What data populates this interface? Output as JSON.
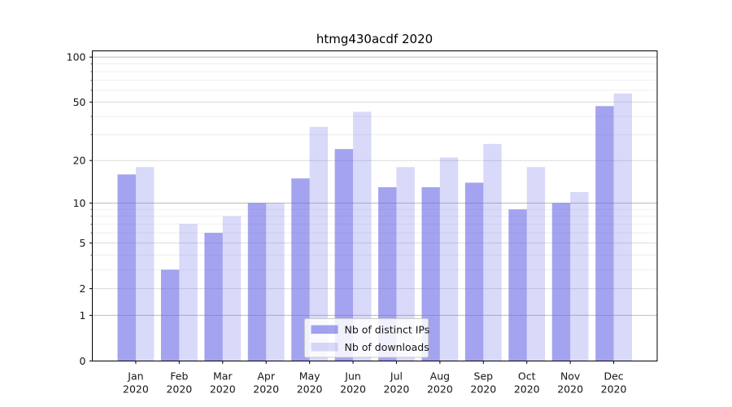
{
  "chart_data": {
    "type": "bar",
    "title": "htmg430acdf 2020",
    "categories": [
      "Jan",
      "Feb",
      "Mar",
      "Apr",
      "May",
      "Jun",
      "Jul",
      "Aug",
      "Sep",
      "Oct",
      "Nov",
      "Dec"
    ],
    "category_year": "2020",
    "series": [
      {
        "name": "Nb of distinct IPs",
        "values": [
          16,
          3,
          6,
          10,
          15,
          24,
          13,
          13,
          14,
          9,
          10,
          47
        ],
        "alpha": 0.6
      },
      {
        "name": "Nb of downloads",
        "values": [
          18,
          7,
          8,
          10,
          34,
          43,
          18,
          21,
          26,
          18,
          12,
          57
        ],
        "alpha": 0.25
      }
    ],
    "bar_base_color": "#6666e6",
    "yscale": "log1p",
    "ylim": [
      0,
      110
    ],
    "yticks": [
      0,
      1,
      2,
      5,
      10,
      20,
      50,
      100
    ],
    "major_gridlines": [
      1,
      10,
      100
    ],
    "mid_gridlines": [
      2,
      5,
      20,
      50
    ],
    "minor_gridlines": [
      3,
      4,
      6,
      7,
      8,
      9,
      30,
      40,
      60,
      70,
      80,
      90
    ],
    "grid": "on",
    "legend_position": "lower center",
    "colors": {
      "major_grid": "#bcbcbc",
      "mid_grid": "#dcdcdc",
      "minor_grid": "#ececec",
      "axis": "#000000",
      "legend_border": "#cccccc",
      "legend_bg": "rgba(255,255,255,0.85)",
      "text": "#161616"
    }
  }
}
